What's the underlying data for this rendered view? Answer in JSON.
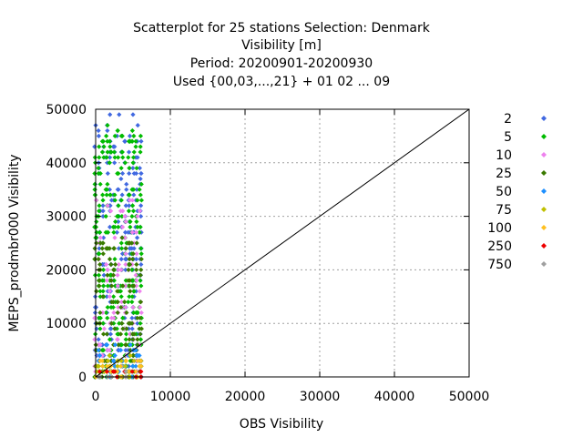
{
  "chart_data": {
    "type": "scatter",
    "title_lines": [
      "Scatterplot for   25 stations Selection: Denmark",
      "Visibility [m]",
      "Period: 20200901-20200930",
      "Used {00,03,...,21} + 01 02 ... 09"
    ],
    "xlabel": "OBS Visibility",
    "ylabel": "MEPS_prodmbr000 Visibility",
    "xlim": [
      0,
      50000
    ],
    "ylim": [
      0,
      50000
    ],
    "xticks": [
      0,
      10000,
      20000,
      30000,
      40000,
      50000
    ],
    "yticks": [
      0,
      10000,
      20000,
      30000,
      40000,
      50000
    ],
    "grid": true,
    "legend_position": "right",
    "diagonal_line": {
      "from": [
        0,
        0
      ],
      "to": [
        50000,
        50000
      ],
      "color": "#000000"
    },
    "series": [
      {
        "name": "2",
        "color": "#4169e1",
        "y_range": [
          0,
          49500
        ]
      },
      {
        "name": "5",
        "color": "#00bb00",
        "y_range": [
          0,
          47000
        ]
      },
      {
        "name": "10",
        "color": "#ee82ee",
        "y_range": [
          0,
          34000
        ]
      },
      {
        "name": "25",
        "color": "#3b7a00",
        "y_range": [
          0,
          26000
        ]
      },
      {
        "name": "50",
        "color": "#1e90ff",
        "y_range": [
          0,
          6000
        ]
      },
      {
        "name": "75",
        "color": "#c0c000",
        "y_range": [
          0,
          4000
        ]
      },
      {
        "name": "100",
        "color": "#ffc020",
        "y_range": [
          0,
          3000
        ]
      },
      {
        "name": "250",
        "color": "#ee0000",
        "y_range": [
          0,
          1500
        ]
      },
      {
        "name": "750",
        "color": "#a0a0a0",
        "y_range": [
          0,
          600
        ]
      }
    ],
    "x_columns": [
      0,
      500,
      1000,
      1500,
      2000,
      2500,
      3000,
      3500,
      4000,
      4500,
      5000,
      5500,
      6000
    ]
  }
}
